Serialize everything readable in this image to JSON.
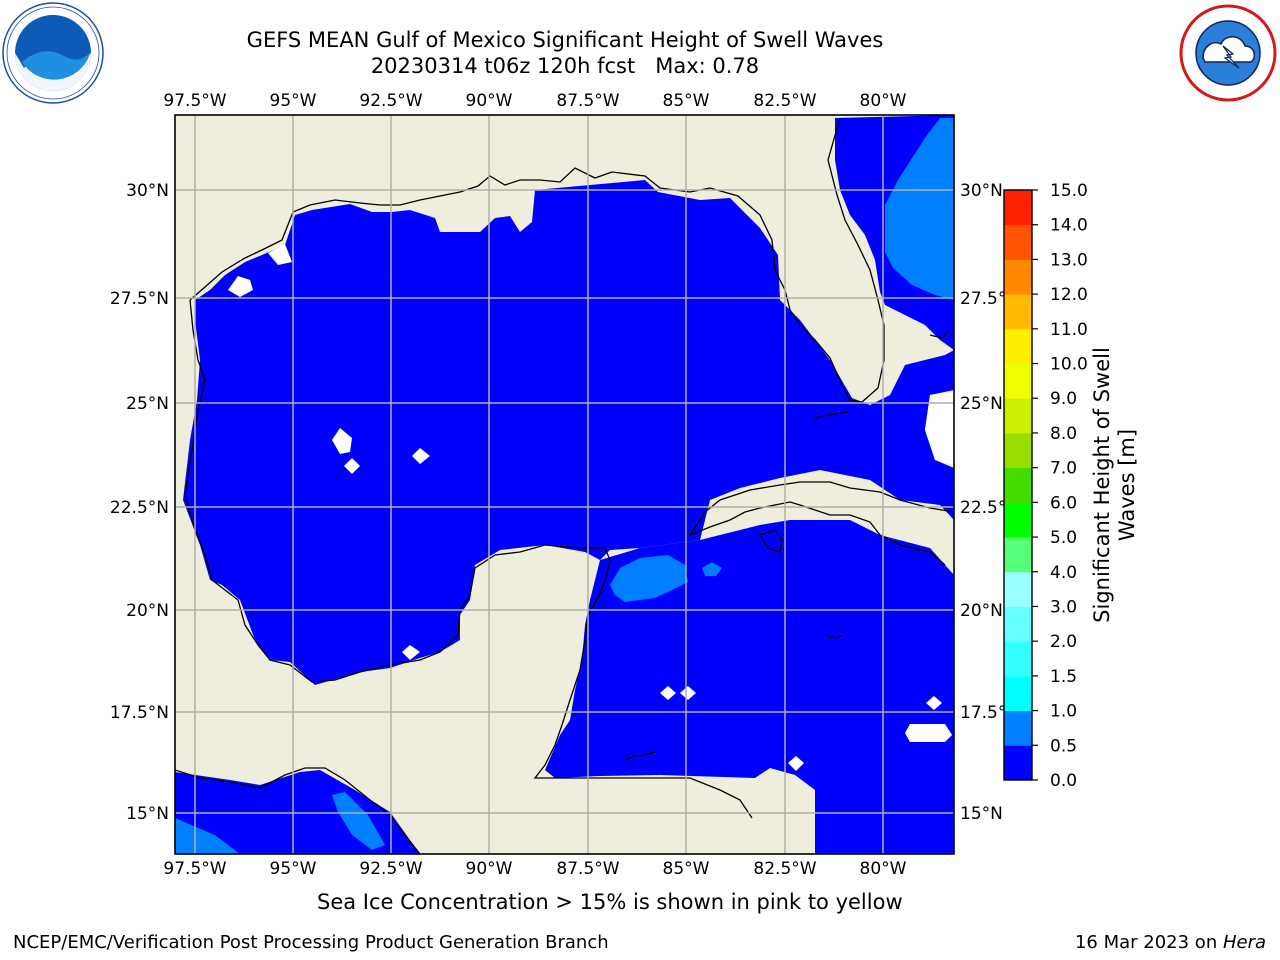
{
  "title_line1": "GEFS MEAN Gulf of Mexico Significant Height of Swell Waves",
  "title_line2": "20230314 t06z 120h fcst   Max: 0.78",
  "map": {
    "lon_ticks": [
      "97.5°W",
      "95°W",
      "92.5°W",
      "90°W",
      "87.5°W",
      "85°W",
      "82.5°W",
      "80°W"
    ],
    "lon_values": [
      -97.5,
      -95,
      -92.5,
      -90,
      -87.5,
      -85,
      -82.5,
      -80
    ],
    "lat_ticks": [
      "30°N",
      "27.5°N",
      "25°N",
      "22.5°N",
      "20°N",
      "17.5°N",
      "15°N"
    ],
    "lat_values": [
      30,
      27.5,
      25,
      22.5,
      20,
      17.5,
      15
    ],
    "lon_range": [
      -98,
      -78
    ],
    "lat_range": [
      14,
      31.8
    ],
    "grid": true,
    "colors": {
      "land": "#efeedc",
      "ocean": "#0000ff",
      "swell_05_1": "#007fff",
      "no_data": "#ffffff",
      "grid": "#b0b0b0"
    }
  },
  "colorbar": {
    "label": "Significant Height of Swell Waves [m]",
    "tick_labels": [
      "0.0",
      "0.5",
      "1.0",
      "1.5",
      "2.0",
      "3.0",
      "4.0",
      "5.0",
      "6.0",
      "7.0",
      "8.0",
      "9.0",
      "10.0",
      "11.0",
      "12.0",
      "13.0",
      "14.0",
      "15.0"
    ],
    "colors": [
      "#0000ff",
      "#007fff",
      "#00ffff",
      "#33ffff",
      "#66ffff",
      "#99ffff",
      "#55ff77",
      "#00ff00",
      "#44dd00",
      "#99dd00",
      "#ccee00",
      "#eeff00",
      "#ffee00",
      "#ffbb00",
      "#ff8800",
      "#ff5500",
      "#ff2200"
    ]
  },
  "caption": "Sea Ice Concentration > 15% is shown in pink to yellow",
  "footer_left": "NCEP/EMC/Verification Post Processing Product Generation Branch",
  "footer_right_date": "16 Mar 2023 on ",
  "footer_right_host": "Hera",
  "logos": {
    "left": "noaa-logo",
    "right": "nws-logo"
  }
}
